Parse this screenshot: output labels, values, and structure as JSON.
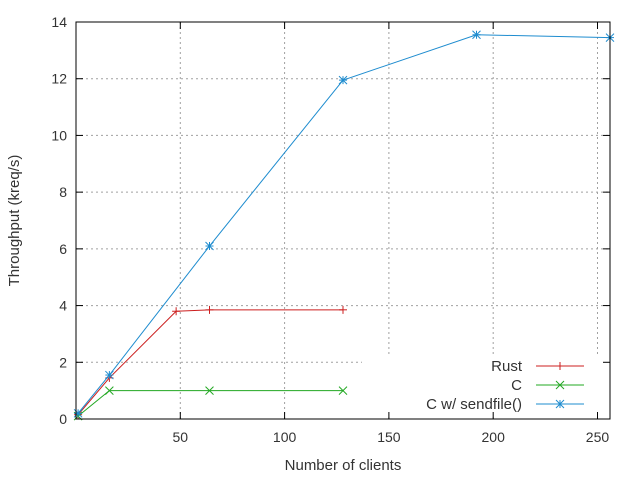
{
  "chart_data": {
    "type": "line",
    "xlabel": "Number of clients",
    "ylabel": "Throughput (kreq/s)",
    "xlim": [
      0,
      256
    ],
    "ylim": [
      0,
      14
    ],
    "xticks": [
      50,
      100,
      150,
      200,
      250
    ],
    "yticks": [
      0,
      2,
      4,
      6,
      8,
      10,
      12,
      14
    ],
    "grid": true,
    "legend_position": "bottom-right",
    "series": [
      {
        "name": "Rust",
        "color": "#cc1f1f",
        "marker": "plus",
        "x": [
          1,
          16,
          48,
          64,
          128
        ],
        "y": [
          0.15,
          1.45,
          3.8,
          3.85,
          3.85
        ]
      },
      {
        "name": "C",
        "color": "#22a822",
        "marker": "cross",
        "x": [
          1,
          16,
          64,
          128
        ],
        "y": [
          0.1,
          1.0,
          1.0,
          1.0
        ]
      },
      {
        "name": "C w/ sendfile()",
        "color": "#1e8ccf",
        "marker": "star",
        "x": [
          1,
          16,
          64,
          128,
          192,
          256
        ],
        "y": [
          0.2,
          1.55,
          6.1,
          11.95,
          13.55,
          13.45
        ]
      }
    ]
  }
}
